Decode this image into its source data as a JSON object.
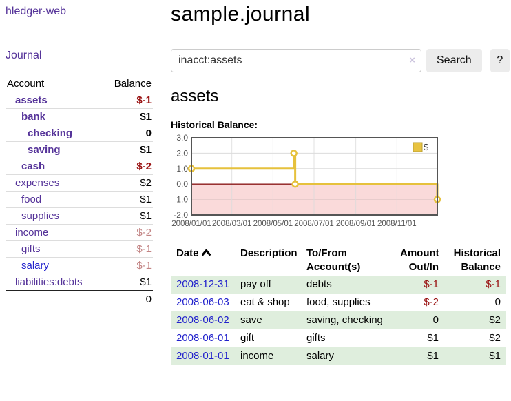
{
  "colors": {
    "link_purple": "#553399",
    "link_blue": "#2222cc",
    "negative_strong": "#991111",
    "negative_soft": "#c28383",
    "row_stripe_green": "#dfeedd",
    "button_bg": "#ececec",
    "chart_gold": "#e6c13c",
    "chart_negative_fill": "#fadada",
    "chart_zero_line": "#8b1a1a"
  },
  "sidebar": {
    "app_title": "hledger-web",
    "journal_link": "Journal",
    "accounts_table": {
      "headers": {
        "account": "Account",
        "balance": "Balance"
      },
      "rows": [
        {
          "name": "assets",
          "depth": 1,
          "bold": true,
          "link_style": "purple",
          "balance": "$-1",
          "balance_color": "darkred"
        },
        {
          "name": "bank",
          "depth": 2,
          "bold": true,
          "link_style": "purple",
          "balance": "$1",
          "balance_color": "black"
        },
        {
          "name": "checking",
          "depth": 3,
          "bold": true,
          "link_style": "purple",
          "balance": "0",
          "balance_color": "black"
        },
        {
          "name": "saving",
          "depth": 3,
          "bold": true,
          "link_style": "purple",
          "balance": "$1",
          "balance_color": "black"
        },
        {
          "name": "cash",
          "depth": 2,
          "bold": true,
          "link_style": "purple",
          "balance": "$-2",
          "balance_color": "darkred"
        },
        {
          "name": "expenses",
          "depth": 1,
          "bold": false,
          "link_style": "purple",
          "balance": "$2",
          "balance_color": "black"
        },
        {
          "name": "food",
          "depth": 2,
          "bold": false,
          "link_style": "purple",
          "balance": "$1",
          "balance_color": "black"
        },
        {
          "name": "supplies",
          "depth": 2,
          "bold": false,
          "link_style": "purple",
          "balance": "$1",
          "balance_color": "black"
        },
        {
          "name": "income",
          "depth": 1,
          "bold": false,
          "link_style": "purple",
          "balance": "$-2",
          "balance_color": "rosy"
        },
        {
          "name": "gifts",
          "depth": 2,
          "bold": false,
          "link_style": "purple",
          "balance": "$-1",
          "balance_color": "rosy"
        },
        {
          "name": "salary",
          "depth": 2,
          "bold": false,
          "link_style": "blue",
          "balance": "$-1",
          "balance_color": "rosy"
        },
        {
          "name": "liabilities:debts",
          "depth": 1,
          "bold": false,
          "link_style": "purple",
          "balance": "$1",
          "balance_color": "black"
        }
      ],
      "total": "0"
    }
  },
  "header": {
    "title": "sample.journal"
  },
  "search": {
    "value": "inacct:assets",
    "clear_icon": "×",
    "button_label": "Search",
    "help_label": "?"
  },
  "account_page": {
    "heading": "assets",
    "chart_label": "Historical Balance:"
  },
  "chart_data": {
    "type": "line",
    "style": "step",
    "title": "Historical Balance",
    "series": [
      {
        "name": "$",
        "color": "#e6c13c",
        "points": [
          [
            "2008-01-01",
            1.0
          ],
          [
            "2008-06-01",
            2.0
          ],
          [
            "2008-06-03",
            0.0
          ],
          [
            "2008-12-31",
            -1.0
          ]
        ]
      }
    ],
    "x_range": [
      "2008-01-01",
      "2008-12-31"
    ],
    "ylim": [
      -2,
      3
    ],
    "y_ticks": [
      3.0,
      2.0,
      1.0,
      0.0,
      -1.0,
      -2.0
    ],
    "x_ticks": [
      "2008/01/01",
      "2008/03/01",
      "2008/05/01",
      "2008/07/01",
      "2008/09/01",
      "2008/11/01"
    ],
    "grid": true,
    "negative_region_color": "#fadada",
    "zero_line_color": "#8b1a1a",
    "legend": {
      "position": "top-right",
      "label": "$",
      "swatch_color": "#e8c341"
    }
  },
  "register_table": {
    "headers": {
      "date": "Date",
      "description": "Description",
      "accounts": "To/From Account(s)",
      "amount": "Amount Out/In",
      "balance": "Historical Balance"
    },
    "rows": [
      {
        "date": "2008-12-31",
        "description": "pay off",
        "accounts": "debts",
        "amount": "$-1",
        "amount_color": "darkred",
        "balance": "$-1",
        "balance_color": "darkred",
        "stripe": true
      },
      {
        "date": "2008-06-03",
        "description": "eat & shop",
        "accounts": "food, supplies",
        "amount": "$-2",
        "amount_color": "darkred",
        "balance": "0",
        "balance_color": "black",
        "stripe": false
      },
      {
        "date": "2008-06-02",
        "description": "save",
        "accounts": "saving, checking",
        "amount": "0",
        "amount_color": "black",
        "balance": "$2",
        "balance_color": "black",
        "stripe": true
      },
      {
        "date": "2008-06-01",
        "description": "gift",
        "accounts": "gifts",
        "amount": "$1",
        "amount_color": "black",
        "balance": "$2",
        "balance_color": "black",
        "stripe": false
      },
      {
        "date": "2008-01-01",
        "description": "income",
        "accounts": "salary",
        "amount": "$1",
        "amount_color": "black",
        "balance": "$1",
        "balance_color": "black",
        "stripe": true
      }
    ]
  }
}
